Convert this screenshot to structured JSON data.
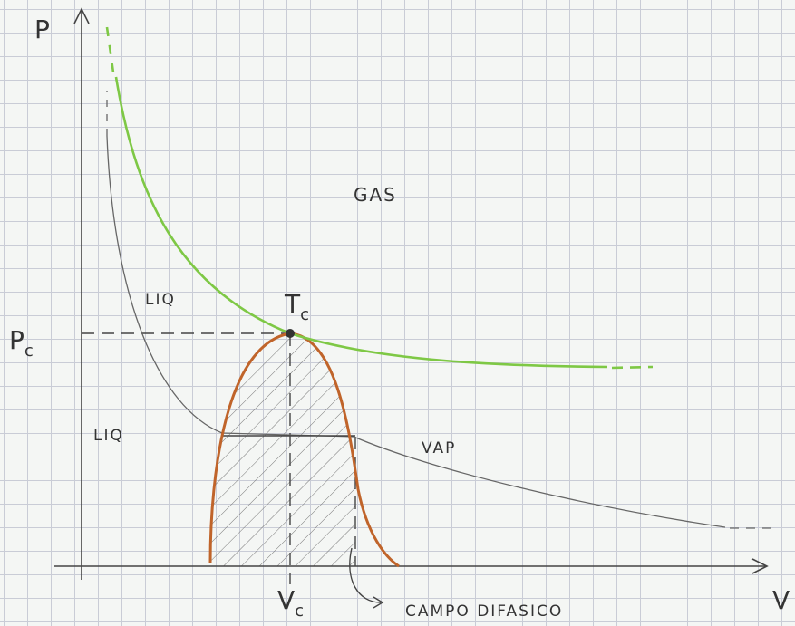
{
  "axes": {
    "y_label": "P",
    "x_label": "V"
  },
  "critical_pressure": {
    "symbol": "P",
    "subscript": "c"
  },
  "critical_volume": {
    "symbol": "V",
    "subscript": "c"
  },
  "critical_temperature": {
    "symbol": "T",
    "subscript": "c"
  },
  "regions": {
    "gas": "GAS",
    "liquid_upper": "LIQ",
    "liquid_lower": "LIQ",
    "vapor": "VAP",
    "two_phase": "CAMPO DIFASICO"
  }
}
